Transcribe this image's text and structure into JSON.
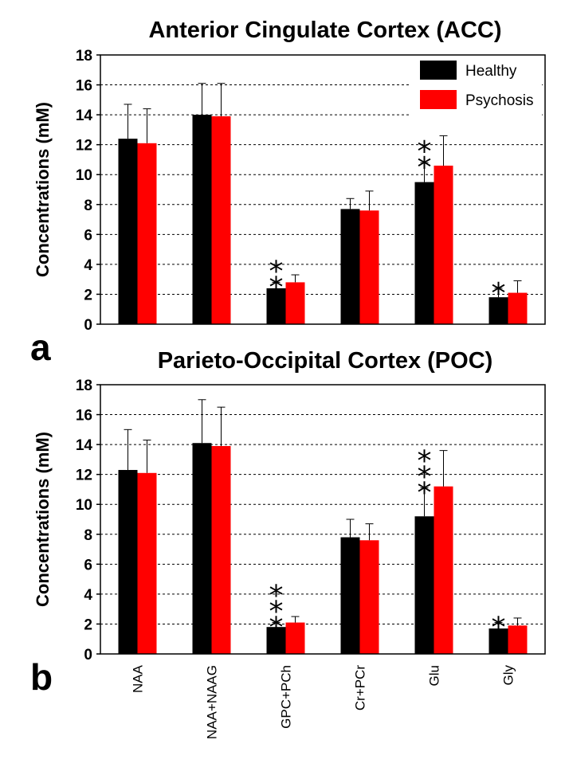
{
  "chart_data": [
    {
      "type": "bar",
      "panel": "a",
      "title": "Anterior Cingulate Cortex (ACC)",
      "xlabel": "",
      "ylabel": "Concentrations (mM)",
      "ylim": [
        0,
        18
      ],
      "yticks": [
        "0",
        "2",
        "4",
        "6",
        "8",
        "10",
        "12",
        "14",
        "16",
        "18"
      ],
      "grid": true,
      "legend_position": "top-right",
      "categories": [
        "NAA",
        "NAA+NAAG",
        "GPC+PCh",
        "Cr+PCr",
        "Glu",
        "Gly"
      ],
      "series": [
        {
          "name": "Healthy",
          "color": "#000000",
          "values": [
            12.4,
            14.0,
            2.4,
            7.7,
            9.5,
            1.8
          ],
          "errors": [
            2.3,
            2.1,
            0.4,
            0.7,
            1.3,
            0.6
          ]
        },
        {
          "name": "Psychosis",
          "color": "#ff0000",
          "values": [
            12.1,
            13.9,
            2.8,
            7.6,
            10.6,
            2.1
          ],
          "errors": [
            2.3,
            2.2,
            0.5,
            1.3,
            2.0,
            0.8
          ]
        }
      ],
      "annotations": [
        "",
        "",
        "**",
        "",
        "**",
        "*"
      ]
    },
    {
      "type": "bar",
      "panel": "b",
      "title": "Parieto-Occipital Cortex (POC)",
      "xlabel": "",
      "ylabel": "Concentrations (mM)",
      "ylim": [
        0,
        18
      ],
      "yticks": [
        "0",
        "2",
        "4",
        "6",
        "8",
        "10",
        "12",
        "14",
        "16",
        "18"
      ],
      "grid": true,
      "categories": [
        "NAA",
        "NAA+NAAG",
        "GPC+PCh",
        "Cr+PCr",
        "Glu",
        "Gly"
      ],
      "series": [
        {
          "name": "Healthy",
          "color": "#000000",
          "values": [
            12.3,
            14.1,
            1.8,
            7.8,
            9.2,
            1.7
          ],
          "errors": [
            2.7,
            2.9,
            0.3,
            1.2,
            1.9,
            0.4
          ]
        },
        {
          "name": "Psychosis",
          "color": "#ff0000",
          "values": [
            12.1,
            13.9,
            2.1,
            7.6,
            11.2,
            1.9
          ],
          "errors": [
            2.2,
            2.6,
            0.4,
            1.1,
            2.4,
            0.5
          ]
        }
      ],
      "annotations": [
        "",
        "",
        "***",
        "",
        "***",
        "*"
      ]
    }
  ]
}
